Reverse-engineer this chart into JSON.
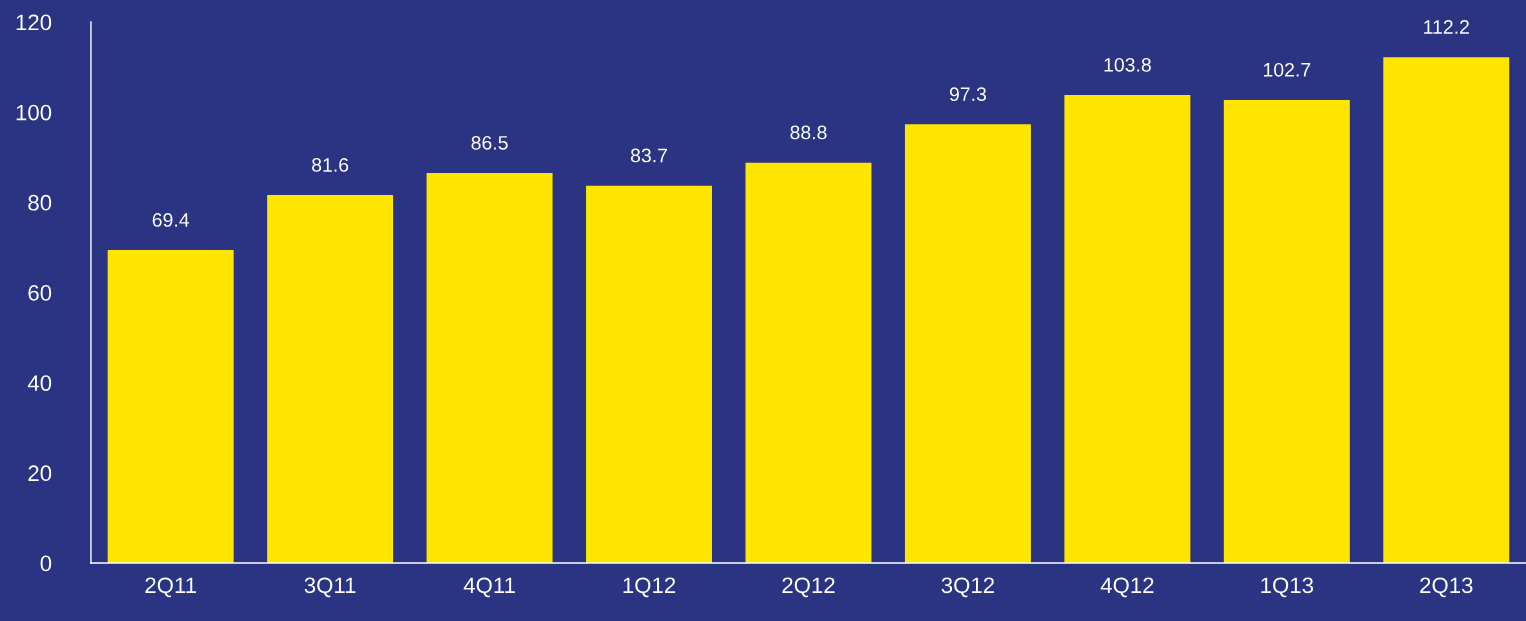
{
  "chart_data": {
    "type": "bar",
    "categories": [
      "2Q11",
      "3Q11",
      "4Q11",
      "1Q12",
      "2Q12",
      "3Q12",
      "4Q12",
      "1Q13",
      "2Q13"
    ],
    "values": [
      69.4,
      81.6,
      86.5,
      83.7,
      88.8,
      97.3,
      103.8,
      102.7,
      112.2
    ],
    "color": "#ffe600",
    "ylim": [
      0,
      120
    ],
    "yticks": [
      0,
      20,
      40,
      60,
      80,
      100,
      120
    ],
    "data_labels": true,
    "grid": false,
    "legend": false
  }
}
